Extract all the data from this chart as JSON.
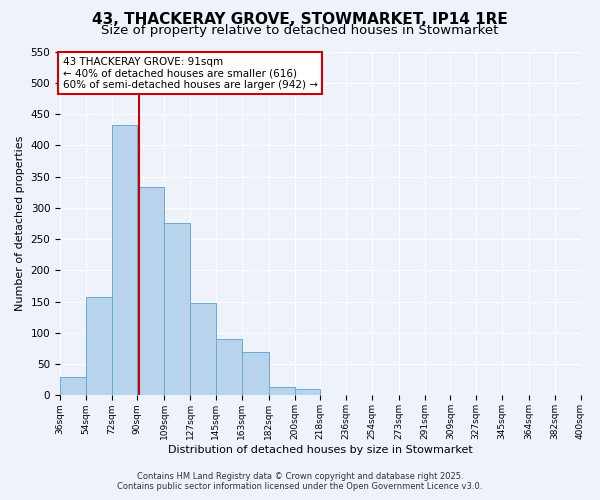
{
  "title": "43, THACKERAY GROVE, STOWMARKET, IP14 1RE",
  "subtitle": "Size of property relative to detached houses in Stowmarket",
  "xlabel": "Distribution of detached houses by size in Stowmarket",
  "ylabel": "Number of detached properties",
  "bin_edges": [
    36,
    54,
    72,
    90,
    109,
    127,
    145,
    163,
    182,
    200,
    218,
    236,
    254,
    273,
    291,
    309,
    327,
    345,
    364,
    382,
    400
  ],
  "bin_counts": [
    29,
    157,
    432,
    333,
    276,
    148,
    91,
    70,
    13,
    10,
    0,
    0,
    0,
    0,
    0,
    0,
    0,
    0,
    0,
    0
  ],
  "bar_color": "#b8d4ec",
  "bar_edge_color": "#6aaad4",
  "vline_x": 91,
  "vline_color": "#cc0000",
  "ylim": [
    0,
    550
  ],
  "yticks": [
    0,
    50,
    100,
    150,
    200,
    250,
    300,
    350,
    400,
    450,
    500,
    550
  ],
  "tick_labels": [
    "36sqm",
    "54sqm",
    "72sqm",
    "90sqm",
    "109sqm",
    "127sqm",
    "145sqm",
    "163sqm",
    "182sqm",
    "200sqm",
    "218sqm",
    "236sqm",
    "254sqm",
    "273sqm",
    "291sqm",
    "309sqm",
    "327sqm",
    "345sqm",
    "364sqm",
    "382sqm",
    "400sqm"
  ],
  "annotation_title": "43 THACKERAY GROVE: 91sqm",
  "annotation_line1": "← 40% of detached houses are smaller (616)",
  "annotation_line2": "60% of semi-detached houses are larger (942) →",
  "annotation_box_color": "#ffffff",
  "annotation_box_edge": "#cc0000",
  "footnote1": "Contains HM Land Registry data © Crown copyright and database right 2025.",
  "footnote2": "Contains public sector information licensed under the Open Government Licence v3.0.",
  "bg_color": "#eef2fb",
  "title_fontsize": 11,
  "subtitle_fontsize": 9.5
}
